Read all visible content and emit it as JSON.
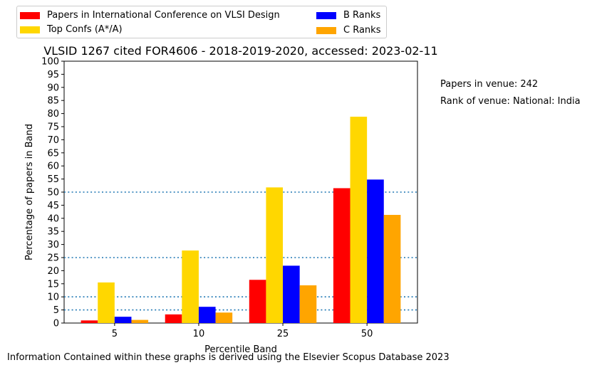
{
  "chart_data": {
    "type": "bar",
    "title": "VLSID 1267 cited FOR4606 - 2018-2019-2020, accessed: 2023-02-11",
    "xlabel": "Percentile Band",
    "ylabel": "Percentage of papers in Band",
    "categories": [
      "5",
      "10",
      "25",
      "50"
    ],
    "ylim": [
      0,
      100
    ],
    "yticks": [
      0,
      5,
      10,
      15,
      20,
      25,
      30,
      35,
      40,
      45,
      50,
      55,
      60,
      65,
      70,
      75,
      80,
      85,
      90,
      95,
      100
    ],
    "reference_lines": [
      5,
      10,
      25,
      50
    ],
    "legend_position": "top-left",
    "grid": false,
    "series": [
      {
        "name": "Papers in International Conference on VLSI Design",
        "color": "#ff0000",
        "values": [
          1.0,
          3.3,
          16.5,
          51.5
        ]
      },
      {
        "name": "Top Confs (A*/A)",
        "color": "#ffd700",
        "values": [
          15.5,
          27.7,
          51.8,
          78.8
        ]
      },
      {
        "name": "B Ranks",
        "color": "#0000ff",
        "values": [
          2.4,
          6.2,
          21.9,
          54.8
        ]
      },
      {
        "name": "C Ranks",
        "color": "#ffa500",
        "values": [
          1.2,
          4.0,
          14.4,
          41.3
        ]
      }
    ]
  },
  "annotations": {
    "papers_in_venue": "Papers in venue: 242",
    "rank_of_venue": "Rank of venue: National: India"
  },
  "footer": "Information Contained within these graphs is derived using the Elsevier Scopus Database 2023"
}
